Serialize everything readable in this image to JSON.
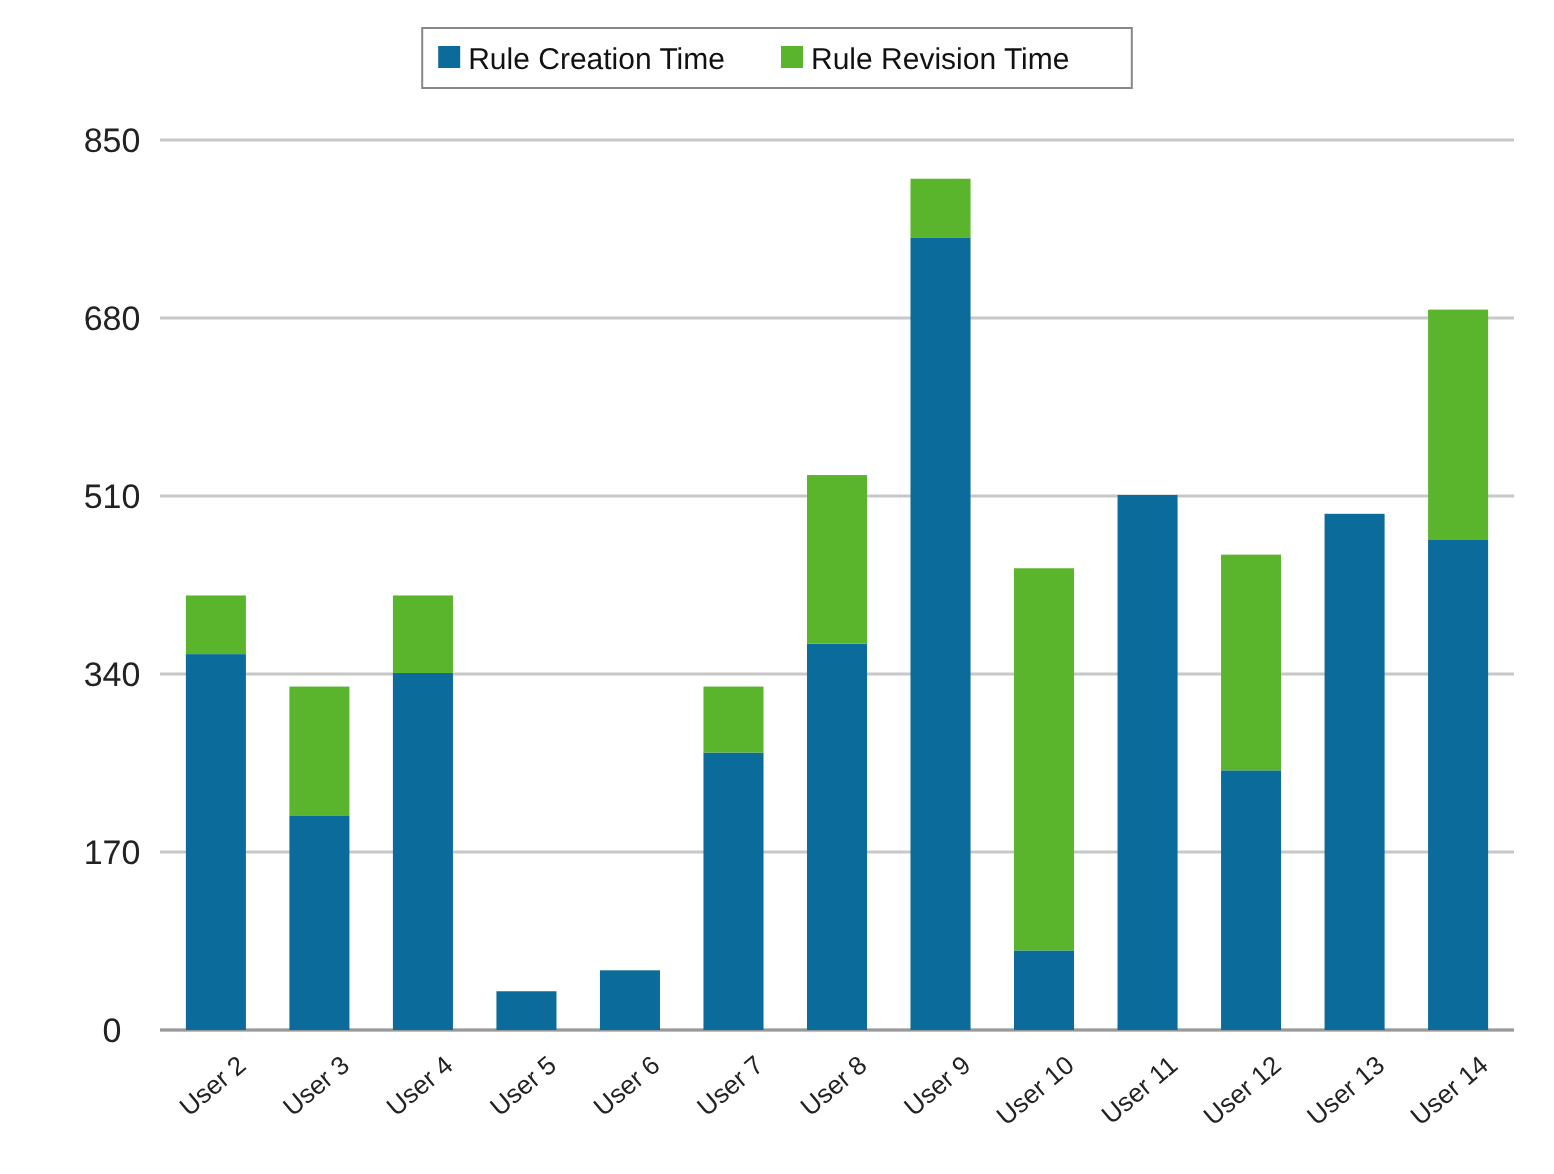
{
  "chart_data": {
    "type": "bar",
    "stacked": true,
    "categories": [
      "User 2",
      "User 3",
      "User 4",
      "User 5",
      "User 6",
      "User 7",
      "User 8",
      "User 9",
      "User 10",
      "User 11",
      "User 12",
      "User 13",
      "User 14"
    ],
    "series": [
      {
        "name": "Rule Creation Time",
        "color": "#0b6b9a",
        "values": [
          359,
          205,
          341,
          37,
          57,
          265,
          369,
          757,
          76,
          511,
          248,
          493,
          468
        ]
      },
      {
        "name": "Rule Revision Time",
        "color": "#5bb52c",
        "values": [
          56,
          123,
          74,
          0,
          0,
          63,
          161,
          56,
          365,
          0,
          206,
          0,
          220
        ]
      }
    ],
    "ylim": [
      0,
      850
    ],
    "yticks": [
      0,
      170,
      340,
      510,
      680,
      850
    ],
    "grid": "y",
    "legend": "top"
  }
}
